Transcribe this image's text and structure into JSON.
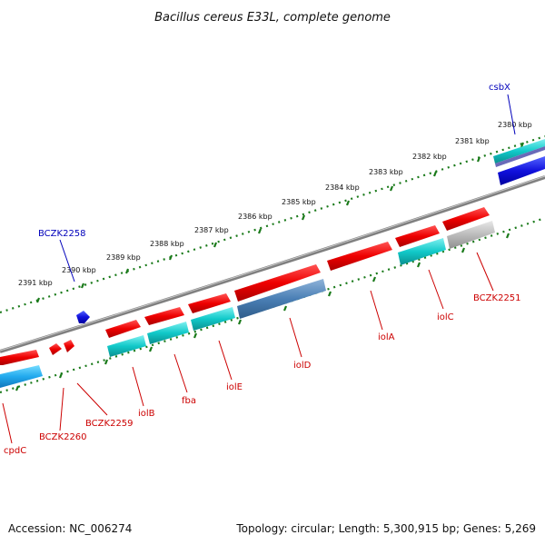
{
  "title": "Bacillus cereus E33L, complete genome",
  "footer": {
    "accession": "Accession: NC_006274",
    "summary": "Topology: circular; Length: 5,300,915 bp; Genes: 5,269"
  },
  "colors": {
    "backbone": "#8a8a8a",
    "tick_dots": "#1a7a1a",
    "gene_forward": "#ee1111",
    "gene_cyan": "#11c9c9",
    "gene_steelblue": "#4a7fb5",
    "gene_grey": "#bbbbbb",
    "gene_blue": "#1111dd",
    "label_red": "#cc0000",
    "label_blue": "#0000bb"
  },
  "scale_ticks": [
    "2391 kbp",
    "2390 kbp",
    "2389 kbp",
    "2388 kbp",
    "2387 kbp",
    "2386 kbp",
    "2385 kbp",
    "2384 kbp",
    "2383 kbp",
    "2382 kbp",
    "2381 kbp",
    "2380 kbp"
  ],
  "gene_labels": [
    {
      "text": "csbX",
      "color": "label_blue"
    },
    {
      "text": "BCZK2258",
      "color": "label_blue"
    },
    {
      "text": "BCZK2251",
      "color": "label_red"
    },
    {
      "text": "iolC",
      "color": "label_red"
    },
    {
      "text": "iolA",
      "color": "label_red"
    },
    {
      "text": "iolD",
      "color": "label_red"
    },
    {
      "text": "iolE",
      "color": "label_red"
    },
    {
      "text": "fba",
      "color": "label_red"
    },
    {
      "text": "iolB",
      "color": "label_red"
    },
    {
      "text": "BCZK2259",
      "color": "label_red"
    },
    {
      "text": "BCZK2260",
      "color": "label_red"
    },
    {
      "text": "cpdC",
      "color": "label_red"
    }
  ]
}
